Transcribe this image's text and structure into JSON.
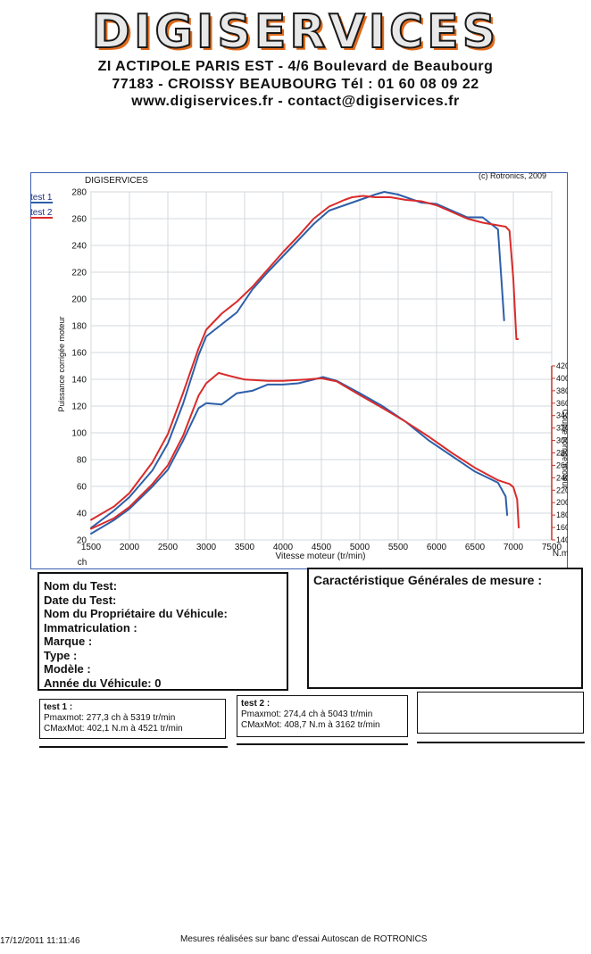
{
  "header": {
    "logo": "DIGISERVICES",
    "line1": "ZI ACTIPOLE PARIS EST - 4/6 Boulevard de Beaubourg",
    "line2": "77183 - CROISSY BEAUBOURG Tél : 01 60 08 09 22",
    "line3": "www.digiservices.fr - contact@digiservices.fr"
  },
  "chart_data": {
    "type": "line",
    "title": "DIGISERVICES",
    "copyright": "(c) Rotronics, 2009",
    "xlabel": "Vitesse moteur (tr/min)",
    "ylabel_left": "Puissance corrigée moteur",
    "ylabel_right": "Couple corrigé moteur",
    "unit_left": "ch",
    "unit_right": "N.m",
    "xlim": [
      1500,
      7500
    ],
    "ylim_left": [
      20,
      280
    ],
    "ylim_right": [
      140,
      420
    ],
    "x_ticks": [
      1500,
      2000,
      2500,
      3000,
      3500,
      4000,
      4500,
      5000,
      5500,
      6000,
      6500,
      7000,
      7500
    ],
    "y_ticks_left": [
      20,
      40,
      60,
      80,
      100,
      120,
      140,
      160,
      180,
      200,
      220,
      240,
      260,
      280
    ],
    "y_ticks_right": [
      140,
      160,
      180,
      200,
      220,
      240,
      260,
      280,
      300,
      320,
      340,
      360,
      380,
      400,
      420
    ],
    "legend": [
      "test 1",
      "test 2"
    ],
    "series": [
      {
        "name": "test 1",
        "quantity": "power",
        "axis": "left",
        "color": "#2d5fa8",
        "x": [
          1500,
          1800,
          2000,
          2300,
          2500,
          2700,
          2900,
          3000,
          3200,
          3400,
          3600,
          3800,
          4000,
          4200,
          4400,
          4600,
          4800,
          5000,
          5200,
          5319,
          5500,
          5800,
          6000,
          6200,
          6400,
          6600,
          6800,
          6850,
          6880
        ],
        "y": [
          29,
          42,
          52,
          72,
          92,
          122,
          158,
          172,
          181,
          190,
          207,
          220,
          232,
          244,
          256,
          266,
          270,
          274,
          278,
          280,
          278,
          272,
          271,
          266,
          261,
          261,
          252,
          210,
          184
        ]
      },
      {
        "name": "test 2",
        "quantity": "power",
        "axis": "left",
        "color": "#d92b2b",
        "x": [
          1500,
          1800,
          2000,
          2300,
          2500,
          2700,
          2900,
          3000,
          3200,
          3400,
          3600,
          3800,
          4000,
          4200,
          4400,
          4600,
          4800,
          4900,
          5043,
          5200,
          5400,
          5600,
          5800,
          6000,
          6200,
          6400,
          6600,
          6800,
          6900,
          6950,
          7000,
          7040,
          7060
        ],
        "y": [
          35,
          45,
          55,
          78,
          99,
          130,
          163,
          177,
          189,
          198,
          209,
          222,
          235,
          247,
          260,
          269,
          274,
          276,
          277,
          276,
          276,
          274,
          273,
          270,
          265,
          260,
          257,
          255,
          254,
          251,
          215,
          170,
          170
        ]
      },
      {
        "name": "test 1",
        "quantity": "torque",
        "axis": "right",
        "color": "#2d5fa8",
        "x": [
          1500,
          1800,
          2000,
          2300,
          2500,
          2700,
          2900,
          3000,
          3200,
          3400,
          3600,
          3800,
          4000,
          4200,
          4400,
          4521,
          4700,
          5000,
          5300,
          5600,
          5900,
          6200,
          6500,
          6800,
          6900,
          6920
        ],
        "y": [
          150,
          172,
          190,
          226,
          253,
          300,
          352,
          360,
          358,
          376,
          380,
          390,
          390,
          392,
          398,
          402.1,
          396,
          376,
          355,
          330,
          300,
          275,
          250,
          232,
          210,
          180
        ]
      },
      {
        "name": "test 2",
        "quantity": "torque",
        "axis": "right",
        "color": "#d92b2b",
        "x": [
          1500,
          1800,
          2000,
          2300,
          2500,
          2700,
          2900,
          3000,
          3162,
          3300,
          3500,
          3800,
          4000,
          4300,
          4500,
          4700,
          5000,
          5300,
          5600,
          5900,
          6200,
          6500,
          6800,
          6950,
          7000,
          7050,
          7070
        ],
        "y": [
          158,
          175,
          193,
          230,
          260,
          308,
          372,
          392,
          408.7,
          404,
          398,
          396,
          396,
          398,
          400,
          395,
          373,
          352,
          330,
          306,
          280,
          256,
          236,
          230,
          225,
          205,
          160
        ]
      }
    ]
  },
  "info": {
    "nom_test": "Nom du Test:",
    "date_test": "Date du Test:",
    "proprietaire": "Nom du Propriétaire du Véhicule:",
    "immatriculation": "Immatriculation :",
    "marque": "Marque :",
    "type": "Type :",
    "modele": "Modèle :",
    "annee": "Année du Véhicule: 0"
  },
  "caracteristiques": {
    "title": "Caractéristique Générales de mesure :"
  },
  "results": {
    "test1": {
      "title": "test 1 :",
      "pmax": "Pmaxmot: 277,3 ch à 5319 tr/min",
      "cmax": "CMaxMot: 402,1 N.m à 4521 tr/min"
    },
    "test2": {
      "title": "test 2 :",
      "pmax": "Pmaxmot: 274,4 ch à 5043 tr/min",
      "cmax": "CMaxMot: 408,7 N.m à 3162 tr/min"
    }
  },
  "footer": {
    "datetime": "17/12/2011 11:11:46",
    "note": "Mesures réalisées sur banc d'essai Autoscan de ROTRONICS"
  }
}
